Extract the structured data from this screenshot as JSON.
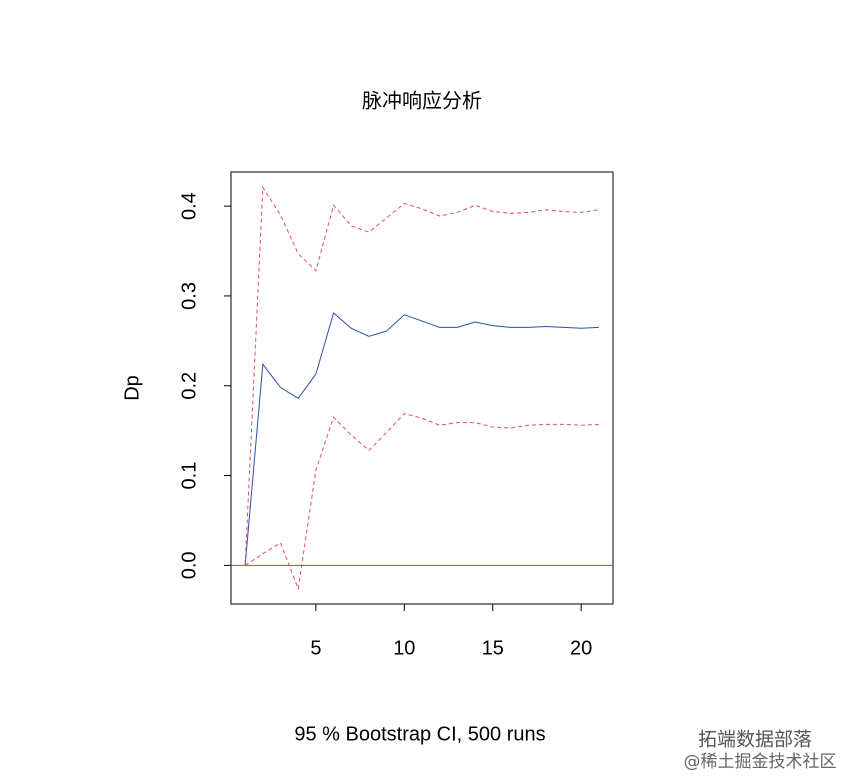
{
  "chart_data": {
    "type": "line",
    "title": "脉冲响应分析",
    "x_label": "95 % Bootstrap CI,  500 runs",
    "y_label": "Dp",
    "x": [
      1,
      2,
      3,
      4,
      5,
      6,
      7,
      8,
      9,
      10,
      11,
      12,
      13,
      14,
      15,
      16,
      17,
      18,
      19,
      20,
      21
    ],
    "series": [
      {
        "color": "#2b4fa3",
        "dash": false,
        "values": [
          0,
          0.224,
          0.198,
          0.186,
          0.213,
          0.281,
          0.264,
          0.255,
          0.261,
          0.279,
          0.272,
          0.265,
          0.265,
          0.271,
          0.267,
          0.265,
          0.265,
          0.266,
          0.265,
          0.264,
          0.265
        ]
      },
      {
        "color": "#e0506a",
        "dash": true,
        "values": [
          0,
          0.421,
          0.39,
          0.347,
          0.328,
          0.401,
          0.378,
          0.371,
          0.387,
          0.403,
          0.397,
          0.389,
          0.393,
          0.401,
          0.394,
          0.392,
          0.393,
          0.396,
          0.394,
          0.393,
          0.396
        ]
      },
      {
        "color": "#e0506a",
        "dash": true,
        "values": [
          0,
          0.013,
          0.025,
          -0.026,
          0.106,
          0.165,
          0.145,
          0.128,
          0.148,
          0.169,
          0.164,
          0.156,
          0.159,
          0.159,
          0.154,
          0.153,
          0.156,
          0.157,
          0.157,
          0.156,
          0.157
        ]
      }
    ],
    "hline": {
      "value": 0,
      "color": "#e8302a"
    },
    "xlim": [
      0.2,
      21.8
    ],
    "ylim": [
      -0.043,
      0.438
    ],
    "xticks": [
      5,
      10,
      15,
      20
    ],
    "yticks": [
      {
        "value": 0,
        "label": "0.0"
      },
      0.1,
      0.2,
      0.3,
      0.4
    ],
    "watermark": [
      "拓端数据部落",
      "@稀土掘金技术社区"
    ]
  }
}
